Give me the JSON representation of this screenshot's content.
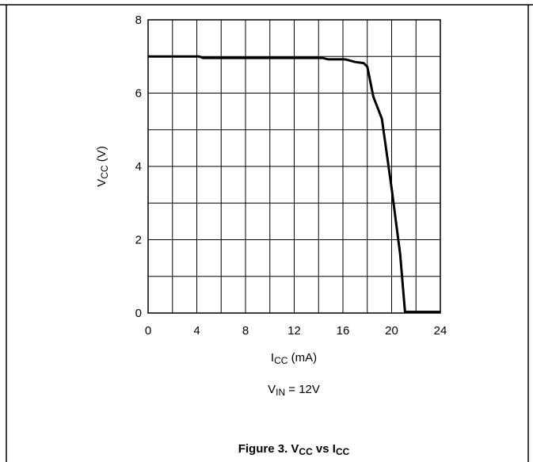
{
  "chart_data": {
    "type": "line",
    "title": "",
    "xlabel": {
      "main": "I",
      "sub": "CC",
      "suffix": " (mA)"
    },
    "ylabel": {
      "main": "V",
      "sub": "CC",
      "suffix": " (V)"
    },
    "condition": {
      "main": "V",
      "sub": "IN",
      "suffix": " = 12V"
    },
    "caption": {
      "prefix": "Figure 3. V",
      "sub1": "CC",
      "mid": " vs I",
      "sub2": "CC"
    },
    "xlim": [
      0,
      24
    ],
    "ylim": [
      0,
      8
    ],
    "x_tick_labels": [
      "0",
      "4",
      "8",
      "12",
      "16",
      "20",
      "24"
    ],
    "y_tick_labels": [
      "0",
      "2",
      "4",
      "6",
      "8"
    ],
    "grid": true,
    "series": [
      {
        "x": [
          0,
          4.2,
          4.5,
          8,
          12,
          14.3,
          14.8,
          16.2,
          17,
          17.7,
          18.0,
          18.5,
          19.2,
          20.0,
          20.7,
          21.1,
          24
        ],
        "y": [
          7.0,
          7.0,
          6.96,
          6.96,
          6.96,
          6.96,
          6.92,
          6.92,
          6.85,
          6.82,
          6.72,
          5.9,
          5.3,
          3.4,
          1.6,
          0.03,
          0.03
        ]
      }
    ]
  }
}
